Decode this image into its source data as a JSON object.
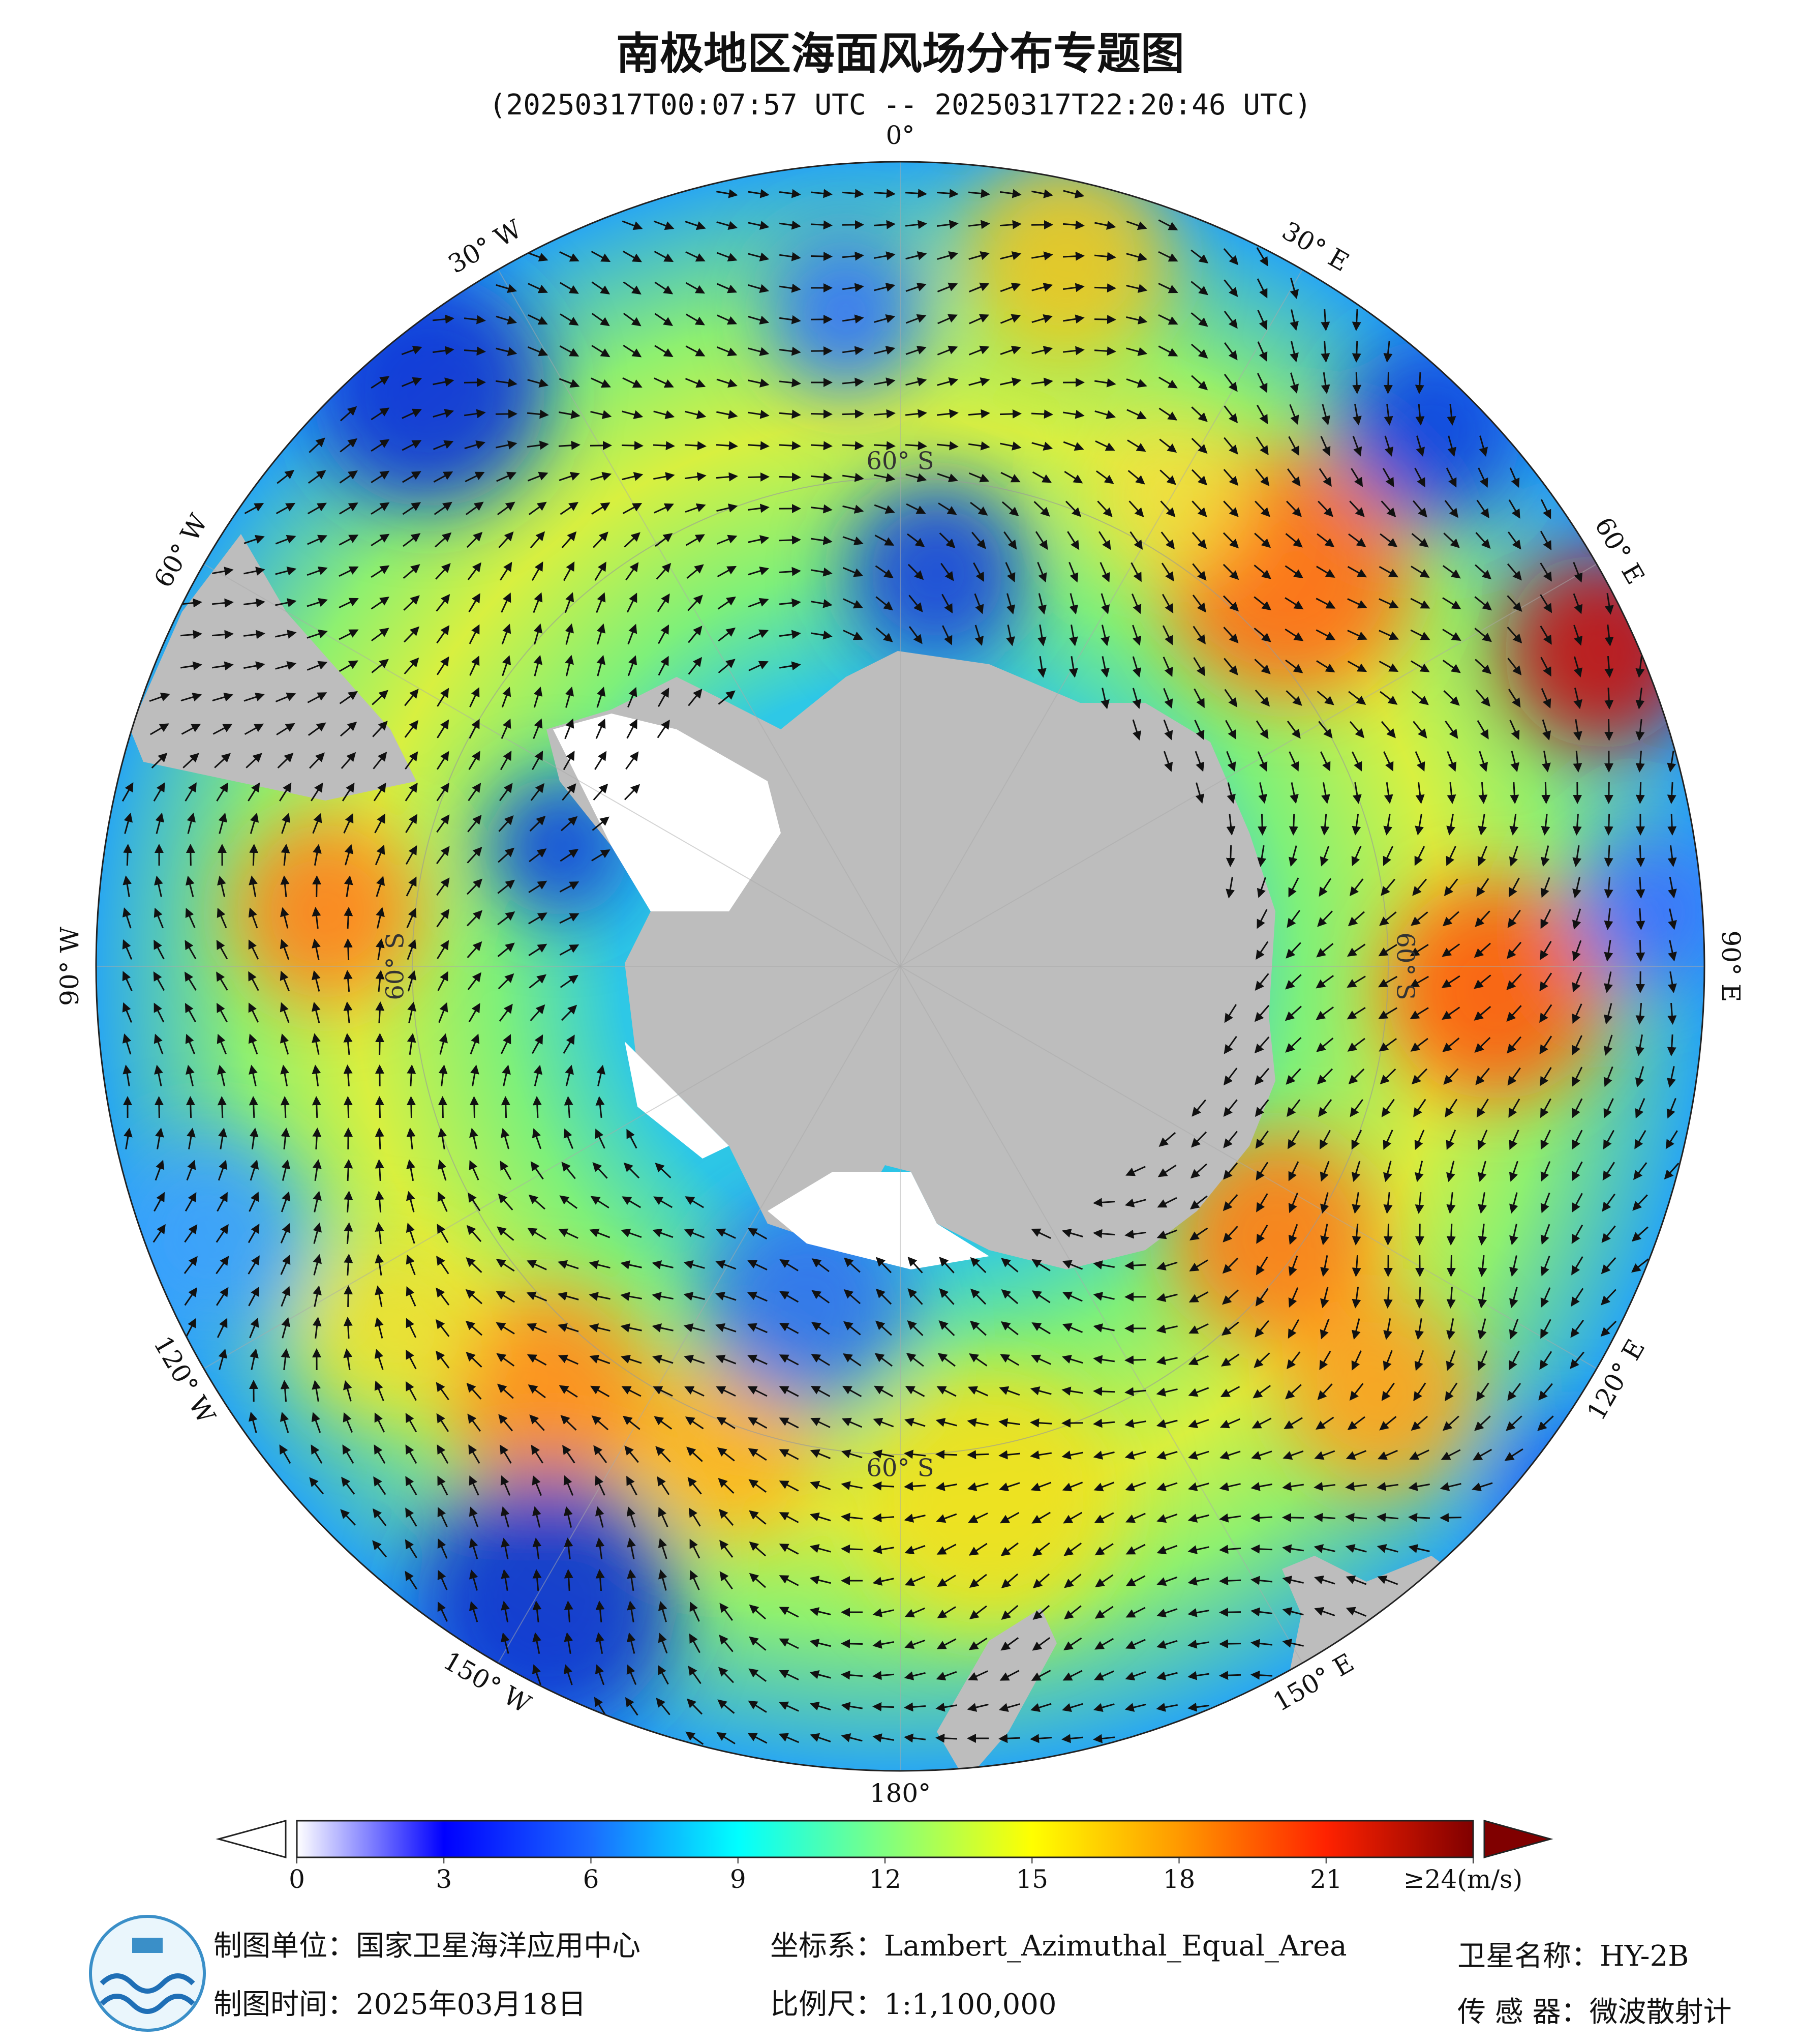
{
  "header": {
    "title": "南极地区海面风场分布专题图",
    "subtitle": "(20250317T00:07:57 UTC -- 20250317T22:20:46 UTC)"
  },
  "map": {
    "longitude_labels": [
      {
        "value": 0,
        "label": "0°"
      },
      {
        "value": 30,
        "label": "30° E"
      },
      {
        "value": 60,
        "label": "60° E"
      },
      {
        "value": 90,
        "label": "90° E"
      },
      {
        "value": 120,
        "label": "120° E"
      },
      {
        "value": 150,
        "label": "150° E"
      },
      {
        "value": 180,
        "label": "180°"
      },
      {
        "value": -150,
        "label": "150° W"
      },
      {
        "value": -120,
        "label": "120° W"
      },
      {
        "value": -90,
        "label": "90° W"
      },
      {
        "value": -60,
        "label": "60° W"
      },
      {
        "value": -30,
        "label": "30° W"
      }
    ],
    "latitude_circle": {
      "value": -60,
      "label": "60° S"
    }
  },
  "colorbar": {
    "range": [
      0,
      24
    ],
    "ticks": [
      0,
      3,
      6,
      9,
      12,
      15,
      18,
      21,
      {
        "value": 24,
        "label": "≥24(m/s)"
      }
    ],
    "colors": [
      "#ffffff",
      "#0000ff",
      "#1a6cff",
      "#00ffff",
      "#80ff80",
      "#ffff00",
      "#ff9900",
      "#ff2200",
      "#800000"
    ]
  },
  "footer": {
    "unit": "制图单位：国家卫星海洋应用中心",
    "date": "制图时间：2025年03月18日",
    "crs": "坐标系：Lambert_Azimuthal_Equal_Area",
    "scale": "比例尺：1:1,100,000",
    "satellite": "卫星名称：HY-2B",
    "sensor": "传 感 器：微波散射计"
  }
}
